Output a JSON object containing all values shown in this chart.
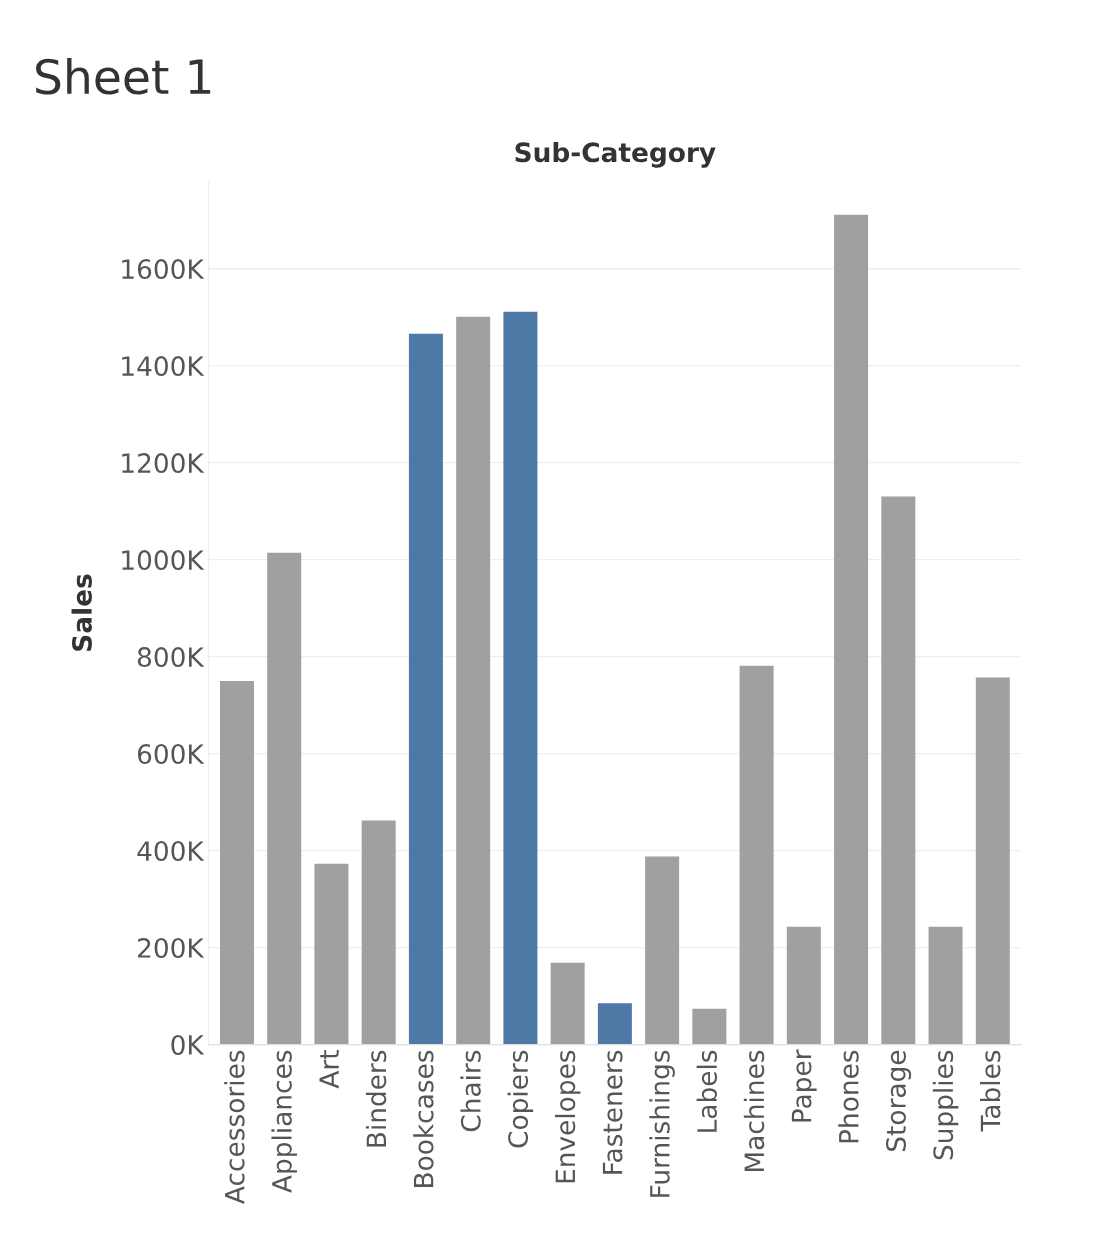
{
  "chart_data": {
    "type": "bar",
    "title": "Sheet 1",
    "xlabel": "Sub-Category",
    "ylabel": "Sales",
    "categories": [
      "Accessories",
      "Appliances",
      "Art",
      "Binders",
      "Bookcases",
      "Chairs",
      "Copiers",
      "Envelopes",
      "Fasteners",
      "Furnishings",
      "Labels",
      "Machines",
      "Paper",
      "Phones",
      "Storage",
      "Supplies",
      "Tables"
    ],
    "values": [
      750,
      1014,
      373,
      462,
      1466,
      1501,
      1511,
      169,
      85,
      388,
      74,
      781,
      243,
      1711,
      1130,
      243,
      757
    ],
    "colors": [
      "#a0a0a0",
      "#a0a0a0",
      "#a0a0a0",
      "#a0a0a0",
      "#4e79a7",
      "#a0a0a0",
      "#4e79a7",
      "#a0a0a0",
      "#4e79a7",
      "#a0a0a0",
      "#a0a0a0",
      "#a0a0a0",
      "#a0a0a0",
      "#a0a0a0",
      "#a0a0a0",
      "#a0a0a0",
      "#a0a0a0"
    ],
    "ylim": [
      0,
      1780
    ],
    "yticks": [
      {
        "value": 0,
        "label": "0K"
      },
      {
        "value": 200,
        "label": "200K"
      },
      {
        "value": 400,
        "label": "400K"
      },
      {
        "value": 600,
        "label": "600K"
      },
      {
        "value": 800,
        "label": "800K"
      },
      {
        "value": 1000,
        "label": "1000K"
      },
      {
        "value": 1200,
        "label": "1200K"
      },
      {
        "value": 1400,
        "label": "1400K"
      },
      {
        "value": 1600,
        "label": "1600K"
      }
    ],
    "grid": "y"
  }
}
